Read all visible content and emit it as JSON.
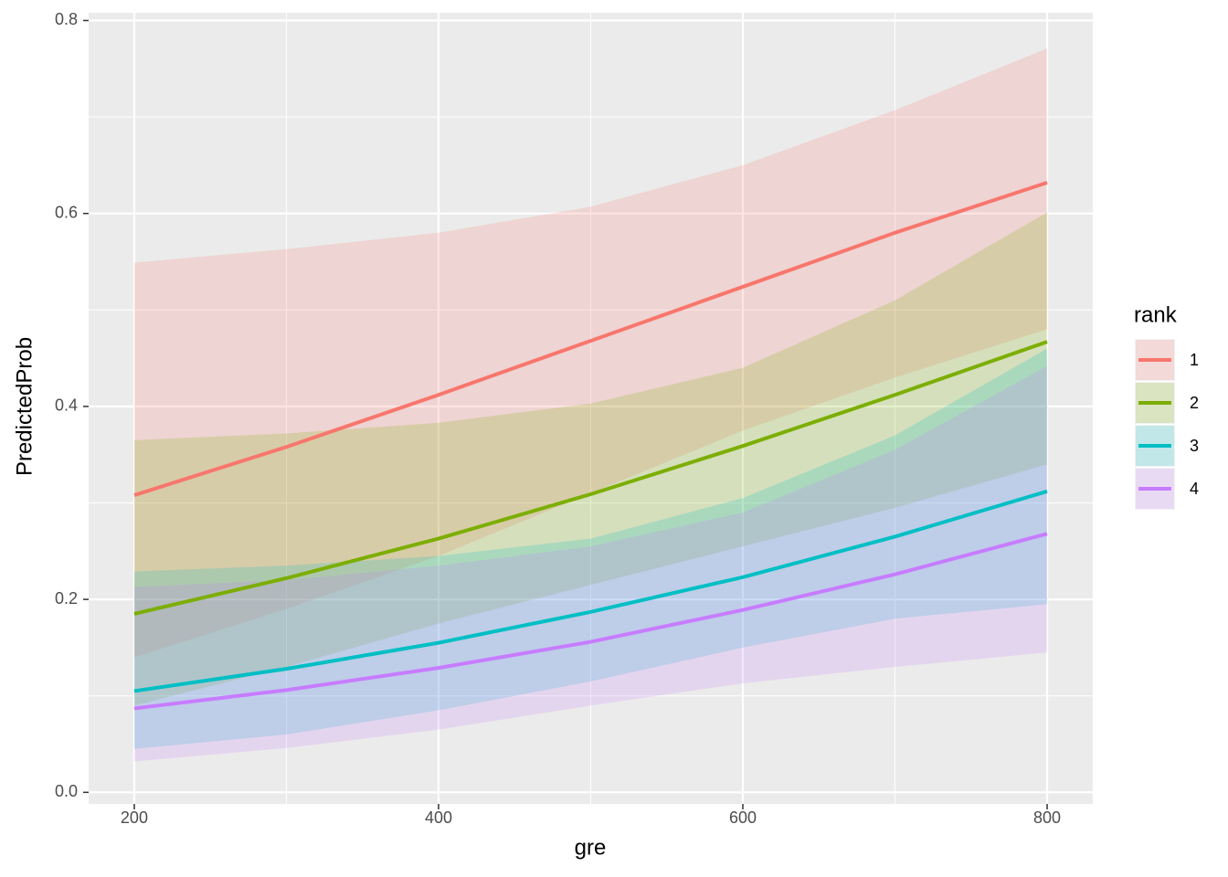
{
  "chart_data": {
    "type": "ribbon-line",
    "x_label": "gre",
    "y_label": "PredictedProb",
    "legend_title": "rank",
    "x": [
      200,
      300,
      400,
      500,
      600,
      700,
      800
    ],
    "series": [
      {
        "name": "1",
        "color": "#F8766D",
        "values": [
          0.308,
          0.358,
          0.412,
          0.468,
          0.524,
          0.58,
          0.632
        ],
        "lower": [
          0.14,
          0.19,
          0.245,
          0.31,
          0.375,
          0.43,
          0.48
        ],
        "upper": [
          0.549,
          0.563,
          0.58,
          0.607,
          0.65,
          0.707,
          0.771
        ]
      },
      {
        "name": "2",
        "color": "#7CAE00",
        "values": [
          0.185,
          0.222,
          0.263,
          0.309,
          0.359,
          0.412,
          0.467
        ],
        "lower": [
          0.09,
          0.13,
          0.175,
          0.215,
          0.255,
          0.295,
          0.34
        ],
        "upper": [
          0.365,
          0.372,
          0.383,
          0.403,
          0.44,
          0.51,
          0.601
        ]
      },
      {
        "name": "3",
        "color": "#00BFC4",
        "values": [
          0.105,
          0.128,
          0.155,
          0.187,
          0.223,
          0.265,
          0.312
        ],
        "lower": [
          0.045,
          0.06,
          0.085,
          0.115,
          0.15,
          0.18,
          0.195
        ],
        "upper": [
          0.229,
          0.235,
          0.245,
          0.263,
          0.305,
          0.37,
          0.46
        ]
      },
      {
        "name": "4",
        "color": "#C77CFF",
        "values": [
          0.087,
          0.106,
          0.129,
          0.156,
          0.189,
          0.226,
          0.268
        ],
        "lower": [
          0.032,
          0.046,
          0.065,
          0.09,
          0.113,
          0.13,
          0.145
        ],
        "upper": [
          0.213,
          0.22,
          0.235,
          0.255,
          0.29,
          0.355,
          0.442
        ]
      }
    ],
    "ribbon_opacity": 0.2,
    "xlim": [
      170,
      830
    ],
    "ylim": [
      -0.012,
      0.808
    ],
    "xticks": [
      200,
      400,
      600,
      800
    ],
    "yticks": [
      {
        "value": 0,
        "label": "0.0"
      },
      0.2,
      0.4,
      0.6,
      0.8
    ],
    "xminor": [
      300,
      500,
      700
    ],
    "yminor": [
      0.1,
      0.3,
      0.5,
      0.7
    ],
    "grid": true
  }
}
